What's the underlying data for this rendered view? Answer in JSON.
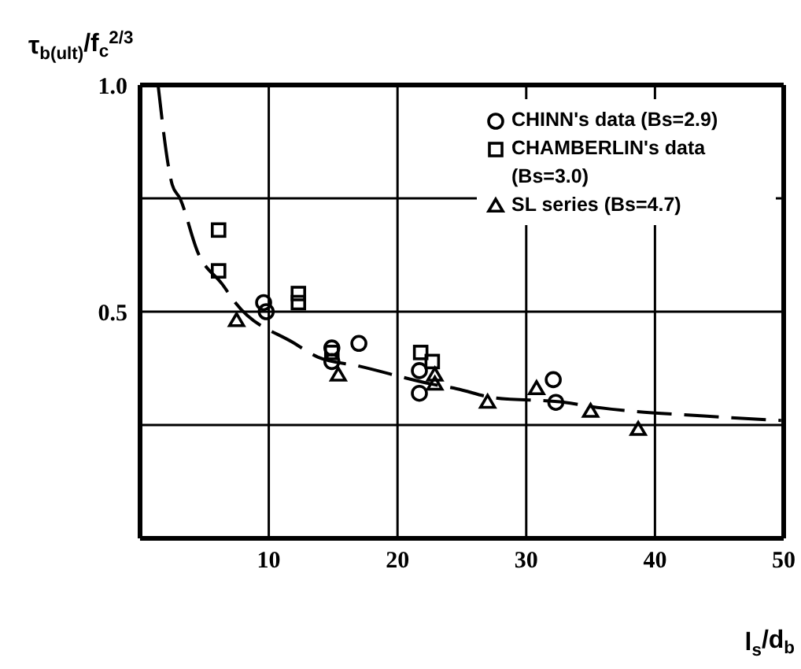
{
  "chart_data": {
    "type": "scatter",
    "xlabel": "l$_{s}$/d$_{b}$",
    "ylabel": "τ$_{b(ult)}$/f$_{c}$$^{2/3}$",
    "xlim": [
      0,
      50
    ],
    "xticks": [
      10,
      20,
      30,
      40,
      50
    ],
    "ylim": [
      0,
      1
    ],
    "yticks": [
      {
        "value": 0.25,
        "label": null
      },
      0.5,
      {
        "value": 0.75,
        "label": null
      },
      {
        "value": 1,
        "label": "1.0"
      }
    ],
    "grid": true,
    "legend": "top right",
    "series": [
      {
        "name": "CHINN's data (Bs=2.9)",
        "color": "#000000",
        "marker": "circle",
        "x": [
          9.6,
          9.8,
          14.9,
          14.9,
          17.0,
          21.7,
          21.7,
          32.1,
          32.3
        ],
        "values": [
          0.52,
          0.5,
          0.42,
          0.39,
          0.43,
          0.37,
          0.32,
          0.35,
          0.3
        ]
      },
      {
        "name": "CHAMBERLIN's data (Bs=3.0)",
        "color": "#000000",
        "marker": "square",
        "x": [
          6.1,
          6.1,
          12.3,
          12.3,
          14.9,
          21.8,
          22.7
        ],
        "values": [
          0.68,
          0.59,
          0.54,
          0.52,
          0.41,
          0.41,
          0.39
        ]
      },
      {
        "name": "SL series (Bs=4.7)",
        "color": "#000000",
        "marker": "triangle",
        "x": [
          7.5,
          15.4,
          22.9,
          22.9,
          27.0,
          30.8,
          35.0,
          38.7
        ],
        "values": [
          0.48,
          0.36,
          0.36,
          0.34,
          0.3,
          0.33,
          0.28,
          0.24
        ]
      },
      {
        "type": "line",
        "color": "#000000",
        "marker": "none",
        "line_style": "dashed",
        "x": [
          1.4,
          2.5,
          3.1,
          4.5,
          6.4,
          7.4,
          12,
          13.8,
          17,
          22.7,
          24.6,
          27.5,
          33,
          35.2,
          43.8,
          49.8
        ],
        "values": [
          1.0,
          0.78,
          0.75,
          0.63,
          0.56,
          0.52,
          0.43,
          0.4,
          0.38,
          0.34,
          0.33,
          0.31,
          0.3,
          0.29,
          0.27,
          0.26
        ]
      }
    ]
  }
}
